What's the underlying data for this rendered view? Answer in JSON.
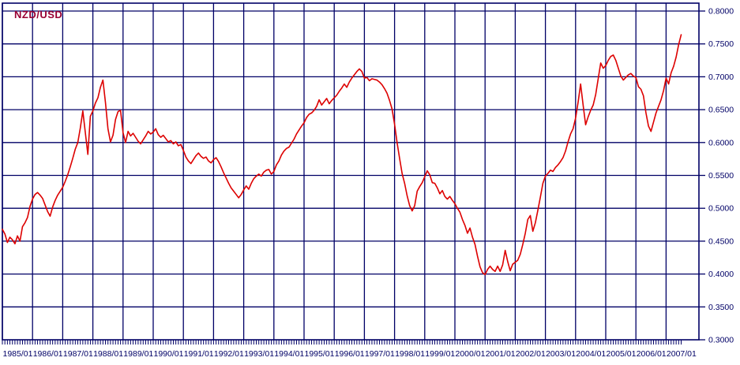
{
  "title": "NZD/USD",
  "colors": {
    "background": "#ffffff",
    "grid": "#000066",
    "frame": "#000066",
    "line": "#dd0000",
    "title_text": "#990033",
    "axis_label_text": "#000066"
  },
  "chart_data": {
    "type": "line",
    "title": "NZD/USD",
    "xlabel": "",
    "ylabel": "",
    "legend_position": "none",
    "grid": true,
    "ylim": [
      0.3,
      0.8
    ],
    "y_tick_step": 0.05,
    "y_tick_labels": [
      "0.8000",
      "0.7500",
      "0.7000",
      "0.6500",
      "0.6000",
      "0.5500",
      "0.5000",
      "0.4500",
      "0.4000",
      "0.3500",
      "0.3000"
    ],
    "x_tick_labels": [
      "1985/01",
      "1986/01",
      "1987/01",
      "1988/01",
      "1989/01",
      "1990/01",
      "1991/01",
      "1992/01",
      "1993/01",
      "1994/01",
      "1995/01",
      "1996/01",
      "1997/01",
      "1998/01",
      "1999/01",
      "2000/01",
      "2001/01",
      "2002/01",
      "2003/01",
      "2004/01",
      "2005/01",
      "2006/01",
      "2007/01"
    ],
    "x_start": "1985/01",
    "x_freq": "monthly",
    "series_name": "NZD/USD exchange rate",
    "values": [
      0.468,
      0.461,
      0.448,
      0.456,
      0.452,
      0.446,
      0.458,
      0.45,
      0.472,
      0.478,
      0.486,
      0.503,
      0.514,
      0.521,
      0.524,
      0.52,
      0.515,
      0.505,
      0.495,
      0.488,
      0.502,
      0.512,
      0.52,
      0.526,
      0.532,
      0.541,
      0.551,
      0.563,
      0.576,
      0.59,
      0.6,
      0.622,
      0.648,
      0.615,
      0.582,
      0.64,
      0.648,
      0.66,
      0.668,
      0.684,
      0.695,
      0.661,
      0.621,
      0.601,
      0.611,
      0.635,
      0.647,
      0.649,
      0.615,
      0.6,
      0.617,
      0.61,
      0.614,
      0.608,
      0.602,
      0.598,
      0.604,
      0.61,
      0.617,
      0.613,
      0.616,
      0.621,
      0.612,
      0.608,
      0.611,
      0.606,
      0.601,
      0.603,
      0.598,
      0.601,
      0.595,
      0.597,
      0.588,
      0.578,
      0.572,
      0.568,
      0.574,
      0.58,
      0.584,
      0.579,
      0.576,
      0.578,
      0.572,
      0.569,
      0.574,
      0.577,
      0.571,
      0.563,
      0.554,
      0.546,
      0.538,
      0.531,
      0.526,
      0.521,
      0.516,
      0.521,
      0.528,
      0.534,
      0.529,
      0.538,
      0.545,
      0.549,
      0.552,
      0.549,
      0.555,
      0.558,
      0.559,
      0.552,
      0.556,
      0.566,
      0.572,
      0.581,
      0.587,
      0.591,
      0.593,
      0.599,
      0.605,
      0.613,
      0.619,
      0.625,
      0.63,
      0.638,
      0.643,
      0.645,
      0.649,
      0.655,
      0.665,
      0.657,
      0.662,
      0.667,
      0.659,
      0.664,
      0.668,
      0.672,
      0.678,
      0.683,
      0.689,
      0.684,
      0.692,
      0.698,
      0.703,
      0.708,
      0.712,
      0.708,
      0.698,
      0.699,
      0.694,
      0.697,
      0.696,
      0.695,
      0.692,
      0.688,
      0.682,
      0.675,
      0.664,
      0.651,
      0.628,
      0.6,
      0.576,
      0.553,
      0.538,
      0.519,
      0.504,
      0.496,
      0.504,
      0.526,
      0.533,
      0.539,
      0.548,
      0.557,
      0.551,
      0.539,
      0.538,
      0.531,
      0.522,
      0.527,
      0.518,
      0.514,
      0.518,
      0.512,
      0.507,
      0.5,
      0.494,
      0.483,
      0.474,
      0.462,
      0.47,
      0.456,
      0.445,
      0.427,
      0.411,
      0.402,
      0.399,
      0.407,
      0.412,
      0.407,
      0.404,
      0.412,
      0.404,
      0.414,
      0.436,
      0.419,
      0.405,
      0.415,
      0.418,
      0.421,
      0.43,
      0.445,
      0.462,
      0.483,
      0.489,
      0.465,
      0.478,
      0.497,
      0.517,
      0.538,
      0.549,
      0.553,
      0.558,
      0.556,
      0.562,
      0.566,
      0.571,
      0.577,
      0.587,
      0.601,
      0.613,
      0.621,
      0.637,
      0.661,
      0.689,
      0.657,
      0.627,
      0.639,
      0.649,
      0.657,
      0.673,
      0.697,
      0.721,
      0.713,
      0.717,
      0.725,
      0.731,
      0.733,
      0.725,
      0.713,
      0.701,
      0.695,
      0.699,
      0.703,
      0.705,
      0.701,
      0.699,
      0.685,
      0.681,
      0.671,
      0.645,
      0.625,
      0.617,
      0.631,
      0.645,
      0.655,
      0.665,
      0.679,
      0.698,
      0.689,
      0.706,
      0.716,
      0.73,
      0.749,
      0.764
    ]
  }
}
